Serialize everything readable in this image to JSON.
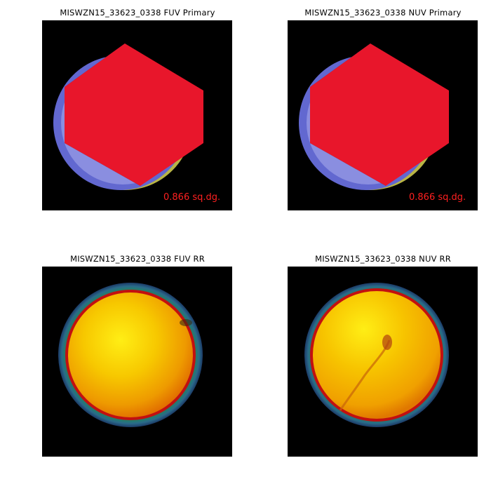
{
  "panels": {
    "fuv_primary": {
      "title": "MISWZN15_33623_0338 FUV Primary",
      "area_label": "0.866 sq.dg."
    },
    "nuv_primary": {
      "title": "MISWZN15_33623_0338 NUV Primary",
      "area_label": "0.866 sq.dg."
    },
    "fuv_rr": {
      "title": "MISWZN15_33623_0338 FUV RR"
    },
    "nuv_rr": {
      "title": "MISWZN15_33623_0338 NUV RR"
    }
  },
  "colors": {
    "background": "#000000",
    "hexagon": "#e8162b",
    "dark_blue": "#1c3b72",
    "light_blue": "#8a8ee0",
    "mid_blue": "#6268d0",
    "olive": "#b9b545",
    "area_text": "#ff2020",
    "rr_core": "#ffe812",
    "rr_mid": "#f5b400",
    "rr_edge": "#c21010",
    "rr_ring": "#1f8a55"
  }
}
